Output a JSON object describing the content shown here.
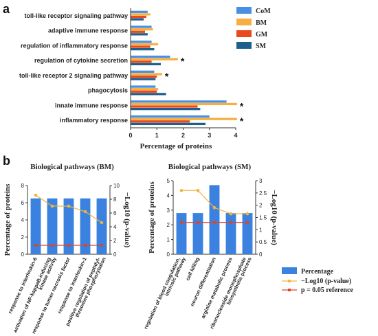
{
  "colors": {
    "CoM": "#4a90e2",
    "BM": "#f5b041",
    "GM": "#e8491d",
    "SM": "#1f5f8b",
    "percentage": "#3b82e0",
    "log": "#f0b43c",
    "ref": "#d9472b"
  },
  "panel_a": {
    "letter": "a",
    "xlabel": "Percentage of proteins",
    "legend": [
      "CoM",
      "BM",
      "GM",
      "SM"
    ]
  },
  "panel_b": {
    "letter": "b",
    "legend": {
      "percentage": "Percentage",
      "log": "−Log10 (p-value)",
      "ref": "p = 0.05  reference"
    }
  },
  "chart_data": [
    {
      "type": "bar",
      "orientation": "horizontal",
      "categories": [
        "toll-like receptor signaling pathway",
        "adaptive immune response",
        "regulation of inflammatory response",
        "regulation of cytokine secretion",
        "toll-like receptor 2 signaling pathway",
        "phagocytosis",
        "innate immune response",
        "inflammatory response"
      ],
      "series": [
        {
          "name": "CoM",
          "values": [
            0.65,
            0.8,
            0.8,
            1.5,
            0.9,
            0.95,
            3.65,
            3.0
          ]
        },
        {
          "name": "BM",
          "values": [
            0.75,
            0.85,
            1.05,
            1.8,
            1.2,
            1.05,
            4.05,
            4.05
          ]
        },
        {
          "name": "GM",
          "values": [
            0.6,
            0.55,
            0.75,
            0.8,
            1.0,
            1.0,
            2.55,
            2.25
          ]
        },
        {
          "name": "SM",
          "values": [
            0.5,
            0.65,
            0.9,
            1.15,
            0.95,
            1.35,
            2.65,
            2.85
          ]
        }
      ],
      "significant": [
        false,
        false,
        false,
        true,
        true,
        false,
        true,
        true
      ],
      "star": "*",
      "xlabel": "Percentage of proteins",
      "xlim": [
        0,
        4
      ],
      "xticks": [
        "0",
        "1",
        "2",
        "3",
        "4"
      ]
    },
    {
      "type": "bar+line",
      "title": "Biological pathways (BM)",
      "categories": [
        "response to interleukin-6",
        "activation of NF-kappaB-inducing kinase activity",
        "response to tumor necrosis factor",
        "response to interleukin-1",
        "positive regulation of peptidyl-threonine phosphorylation"
      ],
      "category_lines": [
        [
          "response to interleukin-6"
        ],
        [
          "activation of NF-kappaB-inducing",
          "kinase activity"
        ],
        [
          "response to tumor necrosis factor"
        ],
        [
          "response to interleukin-1"
        ],
        [
          "positive regulation of peptidyl-",
          "threonine phosphorylation"
        ]
      ],
      "series": [
        {
          "name": "Percentage",
          "values": [
            6.5,
            6.5,
            6.5,
            6.5,
            6.5
          ]
        },
        {
          "name": "−Log10 (p-value)",
          "values": [
            8.6,
            7.0,
            7.0,
            6.2,
            4.6
          ]
        },
        {
          "name": "p = 0.05  reference",
          "values": [
            1.3,
            1.3,
            1.3,
            1.3,
            1.3
          ]
        }
      ],
      "ylabel": "Percentage of proteins",
      "ylim": [
        0,
        8
      ],
      "yticks": [
        "0",
        "2",
        "4",
        "6",
        "8"
      ],
      "y2label": "−Log10 (p-value)",
      "y2lim": [
        0,
        10
      ],
      "y2ticks": [
        "0",
        "2",
        "4",
        "6",
        "8",
        "10"
      ]
    },
    {
      "type": "bar+line",
      "title": "Biological pathways (SM)",
      "categories": [
        "regulation of blood coagulation, intrinsic pathway",
        "cell killing",
        "neuron differentiation",
        "arginine metabolic process",
        "ribonucleoside monophosphate biosynthetic process"
      ],
      "category_lines": [
        [
          "regulation of blood coagulation,",
          "intrinsic pathway"
        ],
        [
          "cell killing"
        ],
        [
          "neuron differentiation"
        ],
        [
          "arginine metabolic process"
        ],
        [
          "ribonucleoside monophosphate",
          "biosynthetic process"
        ]
      ],
      "series": [
        {
          "name": "Percentage",
          "values": [
            2.8,
            2.8,
            4.7,
            2.8,
            2.8
          ]
        },
        {
          "name": "−Log10 (p-value)",
          "values": [
            2.6,
            2.6,
            1.9,
            1.65,
            1.65
          ]
        },
        {
          "name": "p = 0.05  reference",
          "values": [
            1.3,
            1.3,
            1.3,
            1.3,
            1.3
          ]
        }
      ],
      "ylabel": "Percentage of proteins",
      "ylim": [
        0,
        5
      ],
      "yticks": [
        "0",
        "1",
        "2",
        "3",
        "4",
        "5"
      ],
      "y2label": "−Log10 (p-value)",
      "y2lim": [
        0,
        3
      ],
      "y2ticks": [
        "0",
        "0.5",
        "1",
        "1.5",
        "2",
        "2.5",
        "3"
      ]
    }
  ]
}
